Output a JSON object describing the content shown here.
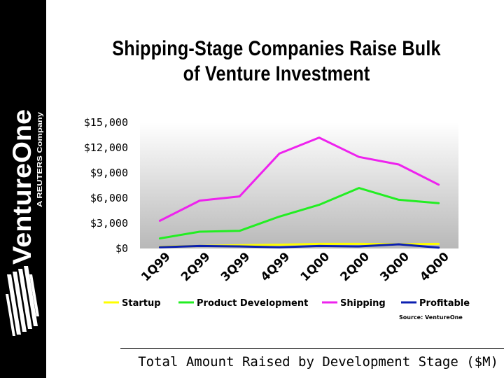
{
  "sidebar": {
    "brand_name": "VentureOne",
    "brand_tagline": "A REUTERS Company"
  },
  "title": {
    "line1": "Shipping-Stage Companies Raise Bulk",
    "line2": "of Venture Investment"
  },
  "footer": {
    "caption": "Total Amount Raised by Development Stage ($M)"
  },
  "chart_data": {
    "type": "line",
    "x": [
      "1Q99",
      "2Q99",
      "3Q99",
      "4Q99",
      "1Q00",
      "2Q00",
      "3Q00",
      "4Q00"
    ],
    "yticks": [
      "$0",
      "$3,000",
      "$6,000",
      "$9,000",
      "$12,000",
      "$15,000"
    ],
    "ylim": [
      0,
      15000
    ],
    "grid": false,
    "legend_position": "bottom",
    "source": "Source: VentureOne",
    "series": [
      {
        "name": "Startup",
        "color": "#ffff00",
        "values": [
          200,
          300,
          400,
          450,
          550,
          550,
          500,
          550
        ]
      },
      {
        "name": "Product Development",
        "color": "#22ee22",
        "values": [
          1200,
          2000,
          2100,
          3800,
          5200,
          7200,
          5800,
          5400
        ]
      },
      {
        "name": "Shipping",
        "color": "#ee22ee",
        "values": [
          3300,
          5700,
          6200,
          11300,
          13200,
          10900,
          10000,
          7600
        ]
      },
      {
        "name": "Profitable",
        "color": "#0b1fb0",
        "values": [
          150,
          300,
          250,
          150,
          300,
          250,
          500,
          100
        ]
      }
    ]
  }
}
